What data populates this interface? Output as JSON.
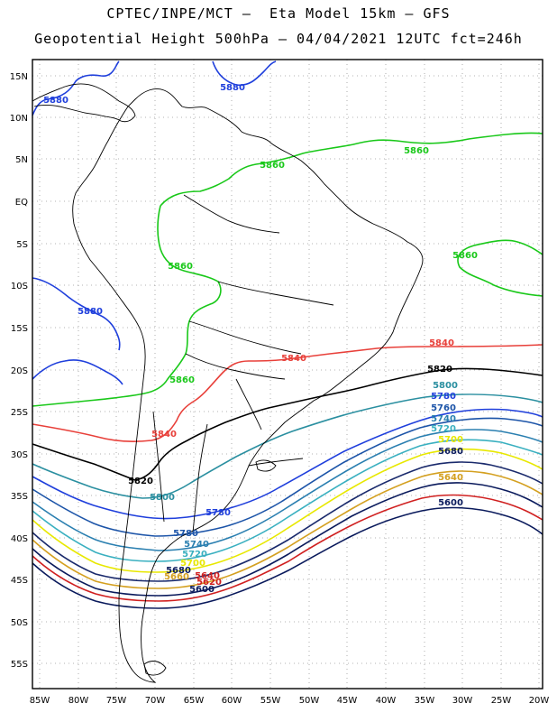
{
  "header": {
    "line1": "CPTEC/INPE/MCT –  Eta Model 15km – GFS",
    "line2": "Geopotential Height 500hPa – 04/04/2021 12UTC fct=246h"
  },
  "axes": {
    "lat_labels": [
      "15N",
      "10N",
      "5N",
      "EQ",
      "5S",
      "10S",
      "15S",
      "20S",
      "25S",
      "30S",
      "35S",
      "40S",
      "45S",
      "50S",
      "55S"
    ],
    "lon_labels": [
      "85W",
      "80W",
      "75W",
      "70W",
      "65W",
      "60W",
      "55W",
      "50W",
      "45W",
      "40W",
      "35W",
      "30W",
      "25W",
      "20W"
    ]
  },
  "colors": {
    "c5580": "#0a1a5c",
    "c5600": "#d02020",
    "c5620": "#d4a020",
    "c5700": "#e8e800",
    "c5720": "#3ab0c0",
    "c5740": "#2a7fb0",
    "c5760": "#1c54a8",
    "c5780": "#1f3fdc",
    "c5800": "#2a8fa0",
    "c5820": "#000000",
    "c5840": "#e8403a",
    "c5860": "#19c819",
    "c5880": "#1f3fdc",
    "land": "#000000"
  },
  "contour_labels": [
    {
      "text": "5880",
      "color": "c5880"
    },
    {
      "text": "5880",
      "color": "c5880"
    },
    {
      "text": "5860",
      "color": "c5860"
    },
    {
      "text": "5860",
      "color": "c5860"
    },
    {
      "text": "5860",
      "color": "c5860"
    },
    {
      "text": "5860",
      "color": "c5860"
    },
    {
      "text": "5880",
      "color": "c5880"
    },
    {
      "text": "5860",
      "color": "c5860"
    },
    {
      "text": "5840",
      "color": "c5840"
    },
    {
      "text": "5840",
      "color": "c5840"
    },
    {
      "text": "5840",
      "color": "c5840"
    },
    {
      "text": "5820",
      "color": "c5820"
    },
    {
      "text": "5820",
      "color": "c5820"
    },
    {
      "text": "5800",
      "color": "c5800"
    },
    {
      "text": "5800",
      "color": "c5800"
    },
    {
      "text": "5780",
      "color": "c5780"
    },
    {
      "text": "5780",
      "color": "c5780"
    },
    {
      "text": "5760",
      "color": "c5760"
    },
    {
      "text": "5740",
      "color": "c5740"
    },
    {
      "text": "5720",
      "color": "c5720"
    },
    {
      "text": "5700",
      "color": "c5700"
    },
    {
      "text": "5680",
      "color": "c5580"
    },
    {
      "text": "5640",
      "color": "c5620"
    },
    {
      "text": "5600",
      "color": "c5580"
    },
    {
      "text": "5780",
      "color": "c5760"
    },
    {
      "text": "5740",
      "color": "c5740"
    },
    {
      "text": "5720",
      "color": "c5720"
    },
    {
      "text": "5700",
      "color": "c5700"
    },
    {
      "text": "5680",
      "color": "c5580"
    },
    {
      "text": "5660",
      "color": "c5620"
    },
    {
      "text": "5640",
      "color": "c5600"
    },
    {
      "text": "5620",
      "color": "c5600"
    },
    {
      "text": "5600",
      "color": "c5580"
    }
  ]
}
